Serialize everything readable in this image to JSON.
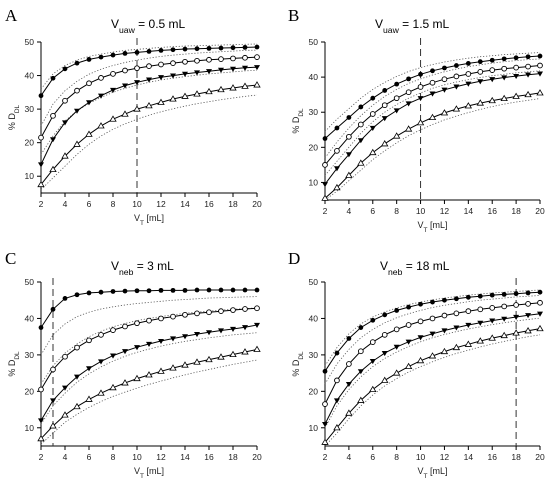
{
  "colors": {
    "ink": "#000000",
    "band": "#555555",
    "open_fill": "#ffffff"
  },
  "chart_data": [
    {
      "type": "line",
      "panel_letter": "A",
      "title": {
        "main": "V",
        "sub": "uaw",
        "rest": " = 0.5 mL"
      },
      "xlabel": {
        "main": "V",
        "sub": "T",
        "rest": " [mL]"
      },
      "ylabel": {
        "main": "% D",
        "sub": "DL"
      },
      "x": [
        2,
        3,
        4,
        5,
        6,
        7,
        8,
        9,
        10,
        11,
        12,
        13,
        14,
        15,
        16,
        17,
        18,
        19,
        20
      ],
      "xticks": [
        2,
        4,
        6,
        8,
        10,
        12,
        14,
        16,
        18,
        20
      ],
      "xlim": [
        2,
        20
      ],
      "ylim": [
        5,
        50
      ],
      "yticks": [
        10,
        20,
        30,
        40,
        50
      ],
      "vline_x": 10,
      "series": [
        {
          "marker": "filled-circle",
          "values": [
            34,
            39.2,
            42,
            43.7,
            44.8,
            45.5,
            46.1,
            46.6,
            46.9,
            47.2,
            47.5,
            47.7,
            47.9,
            48,
            48.1,
            48.2,
            48.3,
            48.4,
            48.5
          ]
        },
        {
          "marker": "open-circle",
          "values": [
            21.5,
            28,
            32.5,
            35.5,
            37.7,
            39.3,
            40.5,
            41.5,
            42.2,
            42.8,
            43.3,
            43.7,
            44.1,
            44.4,
            44.7,
            44.9,
            45.1,
            45.3,
            45.5
          ]
        },
        {
          "marker": "filled-triangle-down",
          "values": [
            13.5,
            21,
            26,
            29.5,
            32,
            34,
            35.7,
            37,
            38,
            38.8,
            39.5,
            40,
            40.5,
            40.9,
            41.3,
            41.7,
            42,
            42.3,
            42.5
          ]
        },
        {
          "marker": "open-triangle-up",
          "values": [
            7.5,
            12,
            16,
            19.5,
            22.5,
            25,
            27,
            28.5,
            30,
            31,
            32,
            33,
            33.8,
            34.5,
            35.2,
            35.8,
            36.3,
            36.8,
            37.2
          ]
        }
      ],
      "bands": [
        {
          "values": [
            36,
            40.5,
            43,
            44.6,
            45.7,
            46.4,
            47,
            47.5,
            47.8,
            48.1,
            48.4,
            48.6,
            48.8,
            48.9,
            49,
            49.1,
            49.2,
            49.3,
            49.4
          ]
        },
        {
          "values": [
            25,
            31.5,
            35.5,
            38.3,
            40.4,
            41.9,
            43,
            43.9,
            44.6,
            45.2,
            45.7,
            46.1,
            46.4,
            46.7,
            46.9,
            47.1,
            47.3,
            47.5,
            47.6
          ]
        },
        {
          "values": [
            16.5,
            22,
            26.5,
            29.5,
            31.7,
            33.5,
            35,
            36.2,
            37.2,
            38,
            38.7,
            39.2,
            39.7,
            40.1,
            40.5,
            40.8,
            41.1,
            41.4,
            41.6
          ]
        },
        {
          "values": [
            6,
            9.5,
            13,
            16.5,
            19.5,
            22,
            24,
            25.6,
            27,
            28.2,
            29.2,
            30.1,
            30.9,
            31.6,
            32.2,
            32.8,
            33.3,
            33.8,
            34.2
          ]
        }
      ]
    },
    {
      "type": "line",
      "panel_letter": "B",
      "title": {
        "main": "V",
        "sub": "uaw",
        "rest": " = 1.5 mL"
      },
      "xlabel": {
        "main": "V",
        "sub": "T",
        "rest": " [mL]"
      },
      "ylabel": {
        "main": "% D",
        "sub": "DL"
      },
      "x": [
        2,
        3,
        4,
        5,
        6,
        7,
        8,
        9,
        10,
        11,
        12,
        13,
        14,
        15,
        16,
        17,
        18,
        19,
        20
      ],
      "xticks": [
        2,
        4,
        6,
        8,
        10,
        12,
        14,
        16,
        18,
        20
      ],
      "xlim": [
        2,
        20
      ],
      "ylim": [
        5,
        50
      ],
      "yticks": [
        10,
        20,
        30,
        40,
        50
      ],
      "vline_x": 10,
      "series": [
        {
          "marker": "filled-circle",
          "values": [
            22.5,
            25.5,
            28.5,
            31.5,
            34,
            36.2,
            38,
            39.5,
            40.8,
            41.8,
            42.6,
            43.3,
            43.9,
            44.4,
            44.8,
            45.2,
            45.5,
            45.8,
            46
          ]
        },
        {
          "marker": "open-circle",
          "values": [
            15,
            19,
            23,
            26.5,
            29.5,
            32,
            34,
            35.7,
            37.2,
            38.4,
            39.4,
            40.2,
            40.9,
            41.5,
            42,
            42.4,
            42.7,
            43,
            43.3
          ]
        },
        {
          "marker": "filled-triangle-down",
          "values": [
            9.5,
            14,
            18,
            22,
            25.5,
            28.3,
            30.5,
            32.5,
            34,
            35.3,
            36.4,
            37.3,
            38.1,
            38.8,
            39.4,
            39.9,
            40.3,
            40.7,
            41
          ]
        },
        {
          "marker": "open-triangle-up",
          "values": [
            5.5,
            8.5,
            12,
            15.5,
            18.5,
            21,
            23.2,
            25.2,
            27,
            28.5,
            29.8,
            30.9,
            31.8,
            32.6,
            33.3,
            33.9,
            34.5,
            35,
            35.5
          ]
        }
      ],
      "bands": [
        {
          "values": [
            24.5,
            28,
            31,
            34,
            36.5,
            38.5,
            40.2,
            41.6,
            42.7,
            43.6,
            44.3,
            44.9,
            45.4,
            45.8,
            46.1,
            46.4,
            46.6,
            46.8,
            47
          ]
        },
        {
          "values": [
            17,
            21.5,
            25.5,
            29,
            32,
            34.5,
            36.5,
            38.2,
            39.5,
            40.6,
            41.5,
            42.3,
            43,
            43.5,
            44,
            44.4,
            44.7,
            45,
            45.2
          ]
        },
        {
          "values": [
            12,
            16,
            20,
            24,
            27.3,
            30,
            32.2,
            34,
            35.5,
            36.8,
            37.8,
            38.6,
            39.3,
            39.9,
            40.4,
            40.8,
            41.2,
            41.5,
            41.8
          ]
        },
        {
          "values": [
            5,
            7.5,
            10.5,
            13.5,
            16.5,
            19,
            21.3,
            23.3,
            25,
            26.5,
            27.8,
            28.9,
            29.9,
            30.8,
            31.6,
            32.3,
            32.9,
            33.4,
            33.9
          ]
        }
      ]
    },
    {
      "type": "line",
      "panel_letter": "C",
      "title": {
        "main": "V",
        "sub": "neb",
        "rest": " = 3 mL"
      },
      "xlabel": {
        "main": "V",
        "sub": "T",
        "rest": " [mL]"
      },
      "ylabel": {
        "main": "% D",
        "sub": "DL"
      },
      "x": [
        2,
        3,
        4,
        5,
        6,
        7,
        8,
        9,
        10,
        11,
        12,
        13,
        14,
        15,
        16,
        17,
        18,
        19,
        20
      ],
      "xticks": [
        2,
        4,
        6,
        8,
        10,
        12,
        14,
        16,
        18,
        20
      ],
      "xlim": [
        2,
        20
      ],
      "ylim": [
        5,
        50
      ],
      "yticks": [
        10,
        20,
        30,
        40,
        50
      ],
      "vline_x": 3,
      "series": [
        {
          "marker": "filled-circle",
          "values": [
            37.5,
            42.5,
            45.5,
            46.5,
            47,
            47.2,
            47.4,
            47.5,
            47.6,
            47.6,
            47.7,
            47.7,
            47.7,
            47.8,
            47.8,
            47.8,
            47.8,
            47.8,
            47.8
          ]
        },
        {
          "marker": "open-circle",
          "values": [
            20.5,
            26,
            29.5,
            32,
            34,
            35.5,
            36.8,
            37.8,
            38.7,
            39.4,
            40,
            40.5,
            41,
            41.4,
            41.7,
            42,
            42.3,
            42.6,
            42.8
          ]
        },
        {
          "marker": "filled-triangle-down",
          "values": [
            12,
            17.5,
            21,
            24,
            26.3,
            28.2,
            29.8,
            31,
            32.1,
            33,
            33.8,
            34.5,
            35.1,
            35.7,
            36.2,
            36.7,
            37.1,
            37.6,
            38.2
          ]
        },
        {
          "marker": "open-triangle-up",
          "values": [
            7,
            10.5,
            13.5,
            15.8,
            17.8,
            19.5,
            21,
            22.3,
            23.5,
            24.5,
            25.5,
            26.4,
            27.2,
            28,
            28.7,
            29.4,
            30.1,
            30.8,
            31.5
          ]
        }
      ],
      "bands": [
        {
          "values": [
            30,
            35.5,
            38.5,
            40.5,
            41.7,
            42.6,
            43.2,
            43.7,
            44.1,
            44.4,
            44.7,
            45,
            45.2,
            45.4,
            45.6,
            45.7,
            45.8,
            45.9,
            46
          ]
        },
        {
          "values": [
            22,
            27,
            30.5,
            33,
            35,
            36.5,
            37.7,
            38.6,
            39.4,
            40,
            40.5,
            41,
            41.4,
            41.7,
            42,
            42.3,
            42.5,
            42.7,
            42.9
          ]
        },
        {
          "values": [
            11,
            16,
            19.5,
            22.5,
            24.8,
            26.7,
            28.3,
            29.6,
            30.7,
            31.6,
            32.4,
            33.1,
            33.7,
            34.2,
            34.7,
            35.1,
            35.5,
            35.8,
            36.1
          ]
        },
        {
          "values": [
            5.5,
            8.5,
            11.5,
            13.7,
            15.6,
            17.2,
            18.6,
            19.8,
            20.9,
            21.9,
            22.8,
            23.7,
            24.5,
            25.3,
            26,
            26.7,
            27.4,
            28,
            28.6
          ]
        }
      ]
    },
    {
      "type": "line",
      "panel_letter": "D",
      "title": {
        "main": "V",
        "sub": "neb",
        "rest": " = 18 mL"
      },
      "xlabel": {
        "main": "V",
        "sub": "T",
        "rest": " [mL]"
      },
      "ylabel": {
        "main": "% D",
        "sub": "DL"
      },
      "x": [
        2,
        3,
        4,
        5,
        6,
        7,
        8,
        9,
        10,
        11,
        12,
        13,
        14,
        15,
        16,
        17,
        18,
        19,
        20
      ],
      "xticks": [
        2,
        4,
        6,
        8,
        10,
        12,
        14,
        16,
        18,
        20
      ],
      "xlim": [
        2,
        20
      ],
      "ylim": [
        5,
        50
      ],
      "yticks": [
        10,
        20,
        30,
        40,
        50
      ],
      "vline_x": 18,
      "series": [
        {
          "marker": "filled-circle",
          "values": [
            25.5,
            30.5,
            34.5,
            37.5,
            39.5,
            41,
            42.2,
            43.1,
            43.9,
            44.5,
            45,
            45.4,
            45.8,
            46.1,
            46.4,
            46.6,
            46.8,
            47,
            47.2
          ]
        },
        {
          "marker": "open-circle",
          "values": [
            16.5,
            23,
            27.5,
            31,
            33.5,
            35.5,
            37,
            38.2,
            39.2,
            40,
            40.8,
            41.4,
            42,
            42.5,
            42.9,
            43.3,
            43.7,
            44,
            44.3
          ]
        },
        {
          "marker": "filled-triangle-down",
          "values": [
            11,
            17.5,
            22,
            25.5,
            28.3,
            30.5,
            32.2,
            33.6,
            34.8,
            35.8,
            36.7,
            37.5,
            38.2,
            38.8,
            39.4,
            39.9,
            40.4,
            40.9,
            41.3
          ]
        },
        {
          "marker": "open-triangle-up",
          "values": [
            6,
            10,
            14,
            17.5,
            20.5,
            23,
            25,
            26.8,
            28.4,
            29.7,
            30.9,
            32,
            32.9,
            33.8,
            34.6,
            35.3,
            36,
            36.6,
            37.2
          ]
        }
      ],
      "bands": [
        {
          "values": [
            27,
            32,
            35.8,
            38.5,
            40.4,
            41.8,
            42.9,
            43.8,
            44.5,
            45.1,
            45.6,
            46,
            46.4,
            46.7,
            47,
            47.2,
            47.4,
            47.6,
            47.8
          ]
        },
        {
          "values": [
            22,
            27.5,
            31.5,
            34.7,
            37,
            38.8,
            40.2,
            41.3,
            42.2,
            43,
            43.6,
            44.1,
            44.6,
            45,
            45.3,
            45.6,
            45.9,
            46.1,
            46.3
          ]
        },
        {
          "values": [
            10,
            16,
            20.5,
            24,
            26.8,
            29,
            30.8,
            32.3,
            33.6,
            34.7,
            35.6,
            36.4,
            37.1,
            37.7,
            38.3,
            38.8,
            39.3,
            39.7,
            40.1
          ]
        },
        {
          "values": [
            5,
            8.5,
            12.5,
            16,
            19,
            21.5,
            23.5,
            25.3,
            26.8,
            28.1,
            29.3,
            30.4,
            31.3,
            32.2,
            33,
            33.7,
            34.4,
            35,
            35.5
          ]
        }
      ]
    }
  ]
}
